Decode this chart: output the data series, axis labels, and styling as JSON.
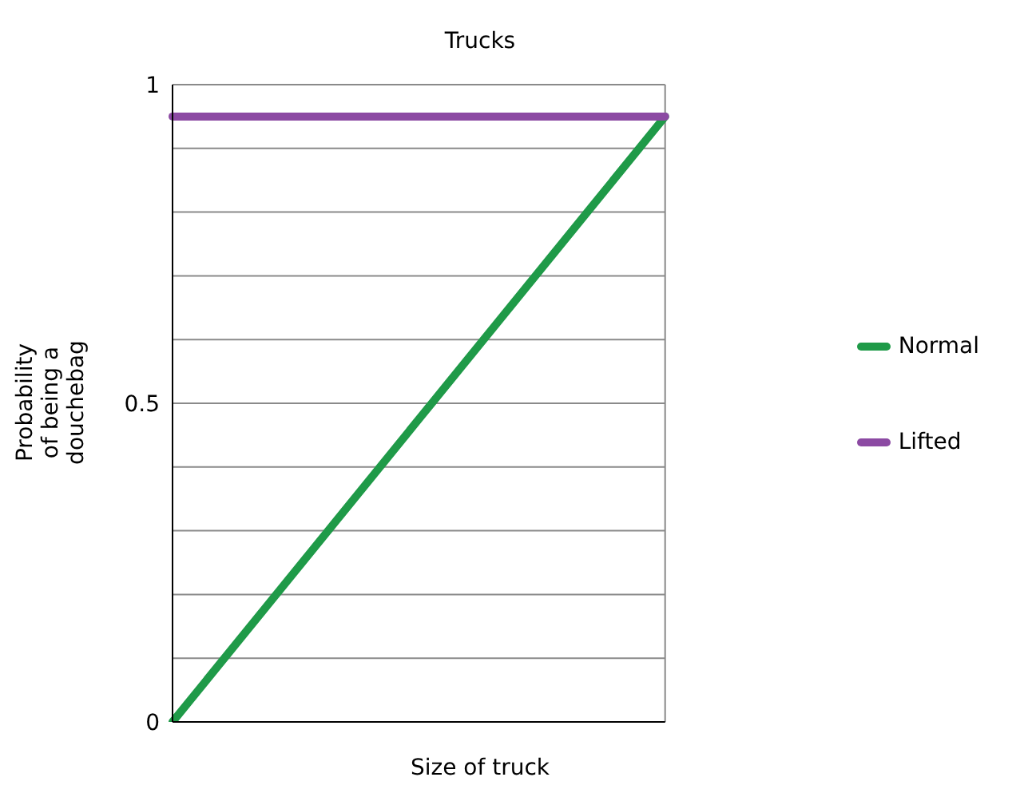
{
  "chart_data": {
    "type": "line",
    "title": "Trucks",
    "xlabel": "Size of truck",
    "ylabel": "Probability\nof being a\ndouchebag",
    "categories": [
      null,
      null,
      null
    ],
    "series": [
      {
        "name": "Normal",
        "color": "#1f9a48",
        "values": [
          0,
          0.475,
          0.95
        ]
      },
      {
        "name": "Lifted",
        "color": "#8c4aa3",
        "values": [
          0.95,
          0.95,
          0.95
        ]
      }
    ],
    "ylim": [
      0,
      1
    ],
    "yticks": [
      0,
      {
        "value": 0.1,
        "label": null
      },
      {
        "value": 0.2,
        "label": null
      },
      {
        "value": 0.3,
        "label": null
      },
      {
        "value": 0.4,
        "label": null
      },
      0.5,
      {
        "value": 0.6,
        "label": null
      },
      {
        "value": 0.7,
        "label": null
      },
      {
        "value": 0.8,
        "label": null
      },
      {
        "value": 0.9,
        "label": null
      },
      1
    ],
    "grid": true,
    "legend": "right",
    "marker": "none",
    "line_style": "solid",
    "tick_labels": "y"
  }
}
